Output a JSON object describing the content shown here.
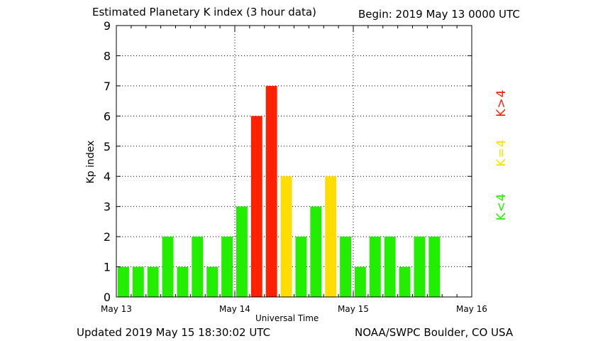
{
  "header": {
    "title": "Estimated Planetary K index  (3 hour data)",
    "begin": "Begin:  2019 May 13 0000 UTC"
  },
  "footer": {
    "updated": "Updated 2019 May 15 18:30:02 UTC",
    "credit": "NOAA/SWPC  Boulder, CO USA"
  },
  "legend": {
    "red": "K>4",
    "yellow": "K=4",
    "green": "K<4"
  },
  "colors": {
    "red": "#ff2000",
    "yellow": "#ffdd00",
    "green": "#22ee00",
    "grid": "#000000"
  },
  "chart_data": {
    "type": "bar",
    "title": "Estimated Planetary K index  (3 hour data)",
    "xlabel": "Universal Time",
    "ylabel": "Kp index",
    "ylim": [
      0,
      9
    ],
    "yticks": [
      "0",
      "1",
      "2",
      "3",
      "4",
      "5",
      "6",
      "7",
      "8",
      "9"
    ],
    "xticks": [
      "May 13",
      "May 14",
      "May 15",
      "May 16"
    ],
    "bins_per_day": 8,
    "days": 3,
    "grid": true,
    "values": [
      1,
      1,
      1,
      2,
      1,
      2,
      1,
      2,
      3,
      6,
      7,
      4,
      2,
      3,
      4,
      2,
      1,
      2,
      2,
      1,
      2,
      2
    ]
  }
}
